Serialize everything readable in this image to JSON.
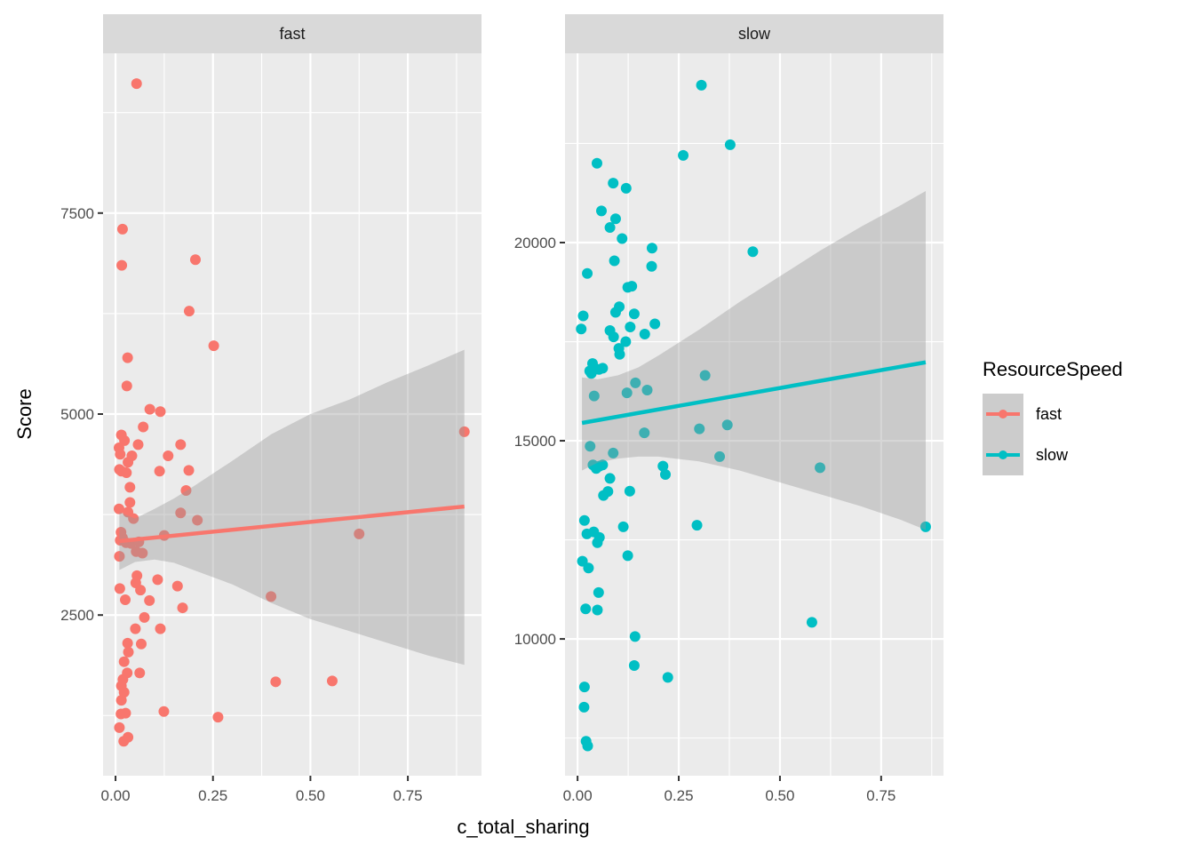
{
  "chart_data": {
    "type": "scatter",
    "title": "",
    "xlabel": "c_total_sharing",
    "ylabel": "Score",
    "facet_by": "ResourceSpeed",
    "grid": true,
    "legend": {
      "title": "ResourceSpeed",
      "position": "right",
      "entries": [
        {
          "label": "fast",
          "color": "#F8766D"
        },
        {
          "label": "slow",
          "color": "#00BFC4"
        }
      ]
    },
    "panels": [
      {
        "strip": "fast",
        "color": "#F8766D",
        "xlim": [
          -0.032,
          0.939
        ],
        "ylim": [
          502,
          9487
        ],
        "x_ticks": [
          0.0,
          0.25,
          0.5,
          0.75
        ],
        "x_tick_labels": [
          "0.00",
          "0.25",
          "0.50",
          "0.75"
        ],
        "x_minor": [
          0.125,
          0.375,
          0.625,
          0.875
        ],
        "y_ticks": [
          2500,
          5000,
          7500
        ],
        "y_tick_labels": [
          "2500",
          "5000",
          "7500"
        ],
        "y_minor": [
          1250,
          3750,
          6250,
          8750
        ],
        "fit": {
          "x": [
            0.01,
            0.895
          ],
          "y": [
            3420,
            3850
          ]
        },
        "ci": {
          "x": [
            0.01,
            0.05,
            0.1,
            0.15,
            0.2,
            0.3,
            0.4,
            0.5,
            0.6,
            0.7,
            0.8,
            0.895
          ],
          "upper": [
            3780,
            3700,
            3820,
            3950,
            4100,
            4420,
            4750,
            5000,
            5180,
            5400,
            5600,
            5800
          ],
          "lower": [
            3060,
            3160,
            3190,
            3150,
            3060,
            2880,
            2650,
            2450,
            2300,
            2150,
            2000,
            1880
          ]
        },
        "points": [
          {
            "x": 0.054,
            "y": 9110
          },
          {
            "x": 0.018,
            "y": 7300
          },
          {
            "x": 0.016,
            "y": 6850
          },
          {
            "x": 0.205,
            "y": 6920
          },
          {
            "x": 0.189,
            "y": 6280
          },
          {
            "x": 0.252,
            "y": 5850
          },
          {
            "x": 0.031,
            "y": 5700
          },
          {
            "x": 0.029,
            "y": 5350
          },
          {
            "x": 0.088,
            "y": 5060
          },
          {
            "x": 0.115,
            "y": 5030
          },
          {
            "x": 0.071,
            "y": 4840
          },
          {
            "x": 0.015,
            "y": 4740
          },
          {
            "x": 0.023,
            "y": 4670
          },
          {
            "x": 0.058,
            "y": 4620
          },
          {
            "x": 0.167,
            "y": 4620
          },
          {
            "x": 0.009,
            "y": 4580
          },
          {
            "x": 0.012,
            "y": 4500
          },
          {
            "x": 0.042,
            "y": 4480
          },
          {
            "x": 0.135,
            "y": 4480
          },
          {
            "x": 0.032,
            "y": 4400
          },
          {
            "x": 0.01,
            "y": 4310
          },
          {
            "x": 0.015,
            "y": 4290
          },
          {
            "x": 0.028,
            "y": 4270
          },
          {
            "x": 0.113,
            "y": 4290
          },
          {
            "x": 0.188,
            "y": 4300
          },
          {
            "x": 0.037,
            "y": 4090
          },
          {
            "x": 0.181,
            "y": 4050
          },
          {
            "x": 0.037,
            "y": 3900
          },
          {
            "x": 0.009,
            "y": 3820
          },
          {
            "x": 0.032,
            "y": 3780
          },
          {
            "x": 0.167,
            "y": 3770
          },
          {
            "x": 0.046,
            "y": 3700
          },
          {
            "x": 0.21,
            "y": 3680
          },
          {
            "x": 0.014,
            "y": 3530
          },
          {
            "x": 0.018,
            "y": 3460
          },
          {
            "x": 0.012,
            "y": 3430
          },
          {
            "x": 0.027,
            "y": 3400
          },
          {
            "x": 0.04,
            "y": 3390
          },
          {
            "x": 0.06,
            "y": 3410
          },
          {
            "x": 0.125,
            "y": 3490
          },
          {
            "x": 0.053,
            "y": 3290
          },
          {
            "x": 0.069,
            "y": 3270
          },
          {
            "x": 0.01,
            "y": 3230
          },
          {
            "x": 0.055,
            "y": 2990
          },
          {
            "x": 0.052,
            "y": 2900
          },
          {
            "x": 0.108,
            "y": 2940
          },
          {
            "x": 0.159,
            "y": 2860
          },
          {
            "x": 0.064,
            "y": 2810
          },
          {
            "x": 0.011,
            "y": 2830
          },
          {
            "x": 0.025,
            "y": 2690
          },
          {
            "x": 0.087,
            "y": 2680
          },
          {
            "x": 0.172,
            "y": 2590
          },
          {
            "x": 0.399,
            "y": 2730
          },
          {
            "x": 0.074,
            "y": 2470
          },
          {
            "x": 0.051,
            "y": 2330
          },
          {
            "x": 0.115,
            "y": 2330
          },
          {
            "x": 0.031,
            "y": 2150
          },
          {
            "x": 0.066,
            "y": 2140
          },
          {
            "x": 0.033,
            "y": 2040
          },
          {
            "x": 0.022,
            "y": 1920
          },
          {
            "x": 0.062,
            "y": 1780
          },
          {
            "x": 0.03,
            "y": 1780
          },
          {
            "x": 0.019,
            "y": 1700
          },
          {
            "x": 0.015,
            "y": 1620
          },
          {
            "x": 0.022,
            "y": 1540
          },
          {
            "x": 0.015,
            "y": 1440
          },
          {
            "x": 0.411,
            "y": 1670
          },
          {
            "x": 0.556,
            "y": 1680
          },
          {
            "x": 0.014,
            "y": 1270
          },
          {
            "x": 0.026,
            "y": 1280
          },
          {
            "x": 0.124,
            "y": 1300
          },
          {
            "x": 0.263,
            "y": 1230
          },
          {
            "x": 0.01,
            "y": 1100
          },
          {
            "x": 0.032,
            "y": 980
          },
          {
            "x": 0.021,
            "y": 930
          },
          {
            "x": 0.625,
            "y": 3510
          },
          {
            "x": 0.895,
            "y": 4780
          }
        ]
      },
      {
        "strip": "slow",
        "color": "#00BFC4",
        "xlim": [
          -0.031,
          0.904
        ],
        "ylim": [
          6550,
          24775
        ],
        "x_ticks": [
          0.0,
          0.25,
          0.5,
          0.75
        ],
        "x_tick_labels": [
          "0.00",
          "0.25",
          "0.50",
          "0.75"
        ],
        "x_minor": [
          0.125,
          0.375,
          0.625,
          0.875
        ],
        "y_ticks": [
          10000,
          15000,
          20000
        ],
        "y_tick_labels": [
          "10000",
          "15000",
          "20000"
        ],
        "y_minor": [
          7500,
          12500,
          17500,
          22500
        ],
        "fit": {
          "x": [
            0.011,
            0.86
          ],
          "y": [
            15450,
            16980
          ]
        },
        "ci": {
          "x": [
            0.011,
            0.05,
            0.1,
            0.15,
            0.2,
            0.3,
            0.4,
            0.5,
            0.6,
            0.7,
            0.8,
            0.86
          ],
          "upper": [
            16600,
            16550,
            16650,
            16850,
            17150,
            17800,
            18500,
            19150,
            19800,
            20400,
            20950,
            21300
          ],
          "lower": [
            14250,
            14450,
            14550,
            14600,
            14600,
            14480,
            14250,
            13950,
            13650,
            13350,
            13000,
            12750
          ]
        },
        "points": [
          {
            "x": 0.306,
            "y": 23970
          },
          {
            "x": 0.377,
            "y": 22470
          },
          {
            "x": 0.261,
            "y": 22200
          },
          {
            "x": 0.048,
            "y": 22000
          },
          {
            "x": 0.088,
            "y": 21500
          },
          {
            "x": 0.12,
            "y": 21370
          },
          {
            "x": 0.059,
            "y": 20800
          },
          {
            "x": 0.094,
            "y": 20600
          },
          {
            "x": 0.08,
            "y": 20380
          },
          {
            "x": 0.11,
            "y": 20100
          },
          {
            "x": 0.184,
            "y": 19860
          },
          {
            "x": 0.433,
            "y": 19770
          },
          {
            "x": 0.091,
            "y": 19540
          },
          {
            "x": 0.183,
            "y": 19400
          },
          {
            "x": 0.024,
            "y": 19220
          },
          {
            "x": 0.124,
            "y": 18870
          },
          {
            "x": 0.134,
            "y": 18900
          },
          {
            "x": 0.103,
            "y": 18380
          },
          {
            "x": 0.094,
            "y": 18240
          },
          {
            "x": 0.14,
            "y": 18200
          },
          {
            "x": 0.014,
            "y": 18150
          },
          {
            "x": 0.191,
            "y": 17950
          },
          {
            "x": 0.009,
            "y": 17820
          },
          {
            "x": 0.13,
            "y": 17870
          },
          {
            "x": 0.08,
            "y": 17780
          },
          {
            "x": 0.089,
            "y": 17620
          },
          {
            "x": 0.166,
            "y": 17690
          },
          {
            "x": 0.119,
            "y": 17500
          },
          {
            "x": 0.102,
            "y": 17330
          },
          {
            "x": 0.104,
            "y": 17180
          },
          {
            "x": 0.037,
            "y": 16950
          },
          {
            "x": 0.053,
            "y": 16800
          },
          {
            "x": 0.062,
            "y": 16830
          },
          {
            "x": 0.03,
            "y": 16760
          },
          {
            "x": 0.034,
            "y": 16700
          },
          {
            "x": 0.315,
            "y": 16650
          },
          {
            "x": 0.143,
            "y": 16460
          },
          {
            "x": 0.172,
            "y": 16280
          },
          {
            "x": 0.122,
            "y": 16210
          },
          {
            "x": 0.041,
            "y": 16130
          },
          {
            "x": 0.37,
            "y": 15400
          },
          {
            "x": 0.301,
            "y": 15300
          },
          {
            "x": 0.165,
            "y": 15200
          },
          {
            "x": 0.031,
            "y": 14860
          },
          {
            "x": 0.088,
            "y": 14690
          },
          {
            "x": 0.351,
            "y": 14600
          },
          {
            "x": 0.038,
            "y": 14390
          },
          {
            "x": 0.062,
            "y": 14390
          },
          {
            "x": 0.046,
            "y": 14300
          },
          {
            "x": 0.054,
            "y": 14360
          },
          {
            "x": 0.211,
            "y": 14360
          },
          {
            "x": 0.599,
            "y": 14320
          },
          {
            "x": 0.217,
            "y": 14150
          },
          {
            "x": 0.08,
            "y": 14050
          },
          {
            "x": 0.129,
            "y": 13730
          },
          {
            "x": 0.075,
            "y": 13720
          },
          {
            "x": 0.064,
            "y": 13620
          },
          {
            "x": 0.017,
            "y": 12990
          },
          {
            "x": 0.295,
            "y": 12870
          },
          {
            "x": 0.113,
            "y": 12830
          },
          {
            "x": 0.86,
            "y": 12830
          },
          {
            "x": 0.04,
            "y": 12700
          },
          {
            "x": 0.023,
            "y": 12650
          },
          {
            "x": 0.054,
            "y": 12560
          },
          {
            "x": 0.049,
            "y": 12430
          },
          {
            "x": 0.124,
            "y": 12100
          },
          {
            "x": 0.012,
            "y": 11960
          },
          {
            "x": 0.027,
            "y": 11790
          },
          {
            "x": 0.052,
            "y": 11170
          },
          {
            "x": 0.02,
            "y": 10760
          },
          {
            "x": 0.049,
            "y": 10730
          },
          {
            "x": 0.579,
            "y": 10420
          },
          {
            "x": 0.142,
            "y": 10060
          },
          {
            "x": 0.14,
            "y": 9330
          },
          {
            "x": 0.223,
            "y": 9030
          },
          {
            "x": 0.017,
            "y": 8790
          },
          {
            "x": 0.016,
            "y": 8280
          },
          {
            "x": 0.021,
            "y": 7420
          },
          {
            "x": 0.025,
            "y": 7300
          }
        ]
      }
    ]
  },
  "colors": {
    "panel_bg": "#EBEBEB",
    "grid_major": "#FFFFFF",
    "strip_bg": "#D9D9D9",
    "ci_fill": "#999999",
    "legend_key_bg": "#CCCCCC"
  }
}
